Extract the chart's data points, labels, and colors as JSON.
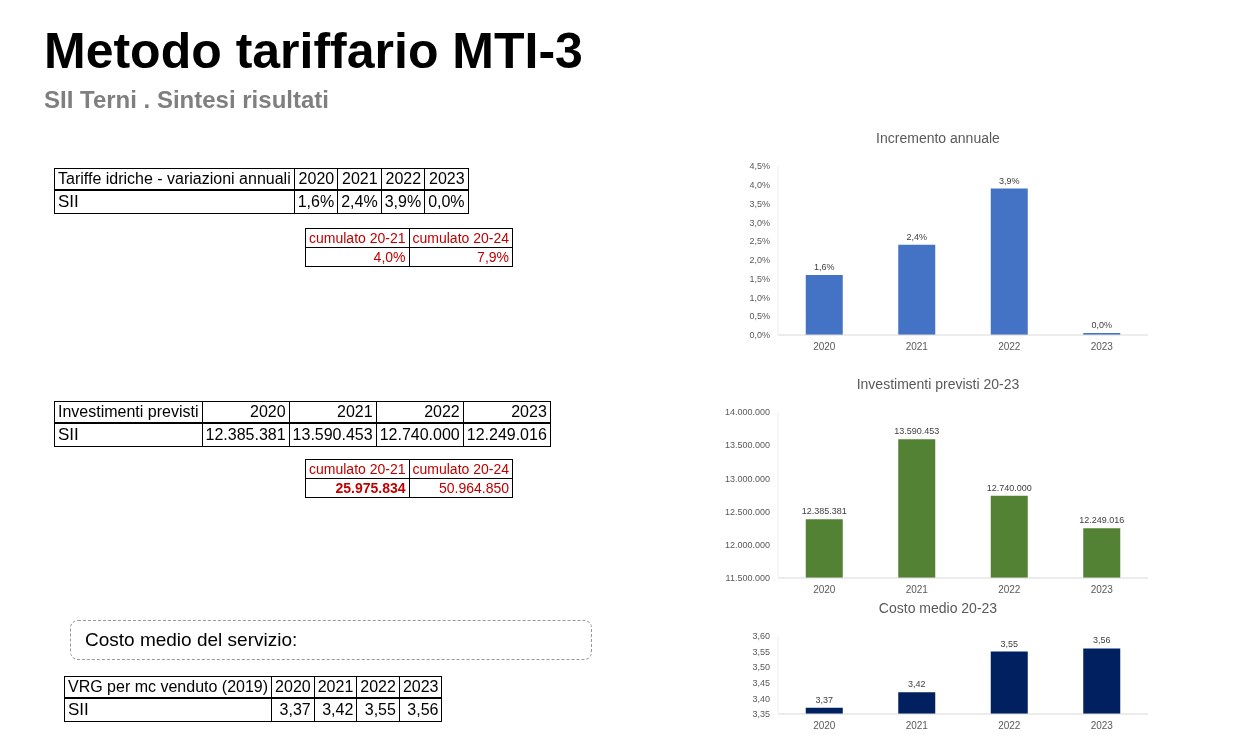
{
  "chart_data": [
    {
      "type": "other",
      "title": "Metodo tariffario MTI-3",
      "subtitle": "SII Terni . Sintesi risultati"
    },
    {
      "type": "other",
      "annotations": [
        "cumulato 20-21",
        "cumulato 20-24",
        "4,0%",
        "7,9%"
      ]
    },
    {
      "type": "bar",
      "title": "Incremento annuale",
      "annotations": [
        "Tariffe idriche - variazioni annuali",
        "SII"
      ],
      "categories": [
        "2020",
        "2021",
        "2022",
        "2023"
      ],
      "values": [
        1.6,
        2.4,
        3.9,
        0.0
      ],
      "color": "#4472c4",
      "value_labels": [
        "1,6%",
        "2,4%",
        "3,9%",
        "0,0%"
      ],
      "ylim": [
        0,
        4.5
      ],
      "yticks": [
        {
          "value": 0,
          "label": "0,0%"
        },
        {
          "value": 0.5,
          "label": "0,5%"
        },
        {
          "value": 1,
          "label": "1,0%"
        },
        {
          "value": 1.5,
          "label": "1,5%"
        },
        {
          "value": 2,
          "label": "2,0%"
        },
        {
          "value": 2.5,
          "label": "2,5%"
        },
        {
          "value": 3,
          "label": "3,0%"
        },
        {
          "value": 3.5,
          "label": "3,5%"
        },
        {
          "value": 4,
          "label": "4,0%"
        },
        {
          "value": 4.5,
          "label": "4,5%"
        }
      ]
    },
    {
      "type": "other",
      "annotations": [
        "cumulato 20-21",
        "cumulato 20-24",
        "25.975.834",
        "50.964.850"
      ]
    },
    {
      "type": "bar",
      "title": "Investimenti previsti 20-23",
      "annotations": [
        "Investimenti previsti",
        "SII"
      ],
      "categories": [
        "2020",
        "2021",
        "2022",
        "2023"
      ],
      "values": [
        12385381,
        13590453,
        12740000,
        12249016
      ],
      "color": "#548235",
      "value_labels": [
        "12.385.381",
        "13.590.453",
        "12.740.000",
        "12.249.016"
      ],
      "ylim": [
        11500000,
        14000000
      ],
      "yticks": [
        {
          "value": 11500000,
          "label": "11.500.000"
        },
        {
          "value": 12000000,
          "label": "12.000.000"
        },
        {
          "value": 12500000,
          "label": "12.500.000"
        },
        {
          "value": 13000000,
          "label": "13.000.000"
        },
        {
          "value": 13500000,
          "label": "13.500.000"
        },
        {
          "value": 14000000,
          "label": "14.000.000"
        }
      ]
    },
    {
      "type": "other",
      "title": "Costo medio del servizio:"
    },
    {
      "type": "bar",
      "title": "Costo medio 20-23",
      "annotations": [
        "VRG per mc venduto (2019)",
        "SII"
      ],
      "categories": [
        "2020",
        "2021",
        "2022",
        "2023"
      ],
      "values": [
        3.37,
        3.42,
        3.55,
        3.56
      ],
      "color": "#002060",
      "value_labels": [
        "3,37",
        "3,42",
        "3,55",
        "3,56"
      ],
      "ylim": [
        3.35,
        3.6
      ],
      "yticks": [
        {
          "value": 3.35,
          "label": "3,35"
        },
        {
          "value": 3.4,
          "label": "3,40"
        },
        {
          "value": 3.45,
          "label": "3,45"
        },
        {
          "value": 3.5,
          "label": "3,50"
        },
        {
          "value": 3.55,
          "label": "3,55"
        },
        {
          "value": 3.6,
          "label": "3,60"
        }
      ]
    }
  ]
}
